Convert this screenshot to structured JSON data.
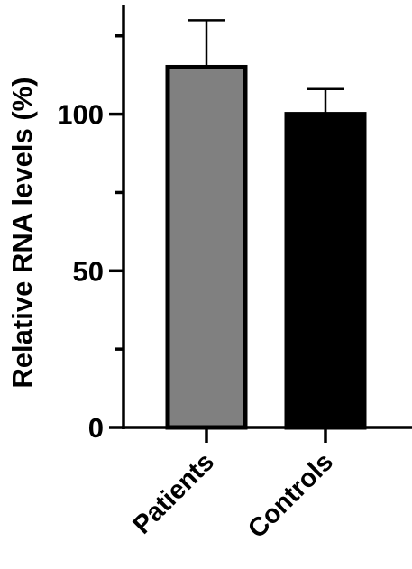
{
  "chart_data": {
    "type": "bar",
    "title": "",
    "xlabel": "",
    "ylabel": "Relative RNA levels (%)",
    "categories": [
      "Patients",
      "Controls"
    ],
    "values": [
      115,
      100
    ],
    "error_upper": [
      130,
      108
    ],
    "ylim": [
      0,
      135
    ],
    "yticks": [
      0,
      50,
      100
    ],
    "grid": false,
    "bar_colors": [
      "#808080",
      "#000000"
    ],
    "bar_edge_color": "#000000",
    "axis_color": "#000000"
  }
}
